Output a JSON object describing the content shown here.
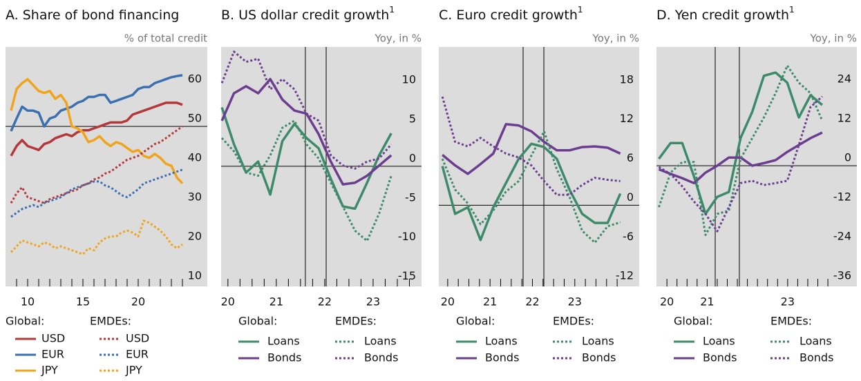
{
  "chart_data": [
    {
      "type": "line",
      "title": "A. Share of bond financing",
      "unit_label": "% of total credit",
      "x": [
        8.5,
        9,
        9.5,
        10,
        10.5,
        11,
        11.5,
        12,
        12.5,
        13,
        13.5,
        14,
        14.5,
        15,
        15.5,
        16,
        16.5,
        17,
        17.5,
        18,
        18.5,
        19,
        19.5,
        20,
        20.5,
        21,
        21.5,
        22,
        22.5,
        23,
        23.5,
        24
      ],
      "xlim": [
        8,
        26.25
      ],
      "xticks": [
        10,
        15,
        20
      ],
      "xminor": [
        9,
        10,
        11,
        12,
        13,
        14,
        15,
        16,
        17,
        18,
        19,
        20,
        21,
        22,
        23,
        24
      ],
      "ylim": [
        9.3,
        70.2
      ],
      "yticks": [
        10,
        20,
        30,
        40,
        50,
        60
      ],
      "hlines": [
        50
      ],
      "legend_groups": [
        "Global:",
        "EMDEs:"
      ],
      "series": [
        {
          "name": "USD",
          "color": "#b5373a",
          "style": "solid",
          "values": [
            42.5,
            45,
            46.5,
            45,
            44.5,
            44,
            45.5,
            46,
            47,
            47.5,
            48,
            47.5,
            48.5,
            49,
            49,
            49.5,
            50,
            50.5,
            51,
            51,
            51,
            51.5,
            53,
            53.5,
            54,
            54.5,
            55,
            55.5,
            56,
            56,
            56,
            55.5
          ]
        },
        {
          "name": "EUR",
          "color": "#3a6fb0",
          "style": "solid",
          "values": [
            48.8,
            52,
            55,
            54,
            54,
            53.5,
            50,
            52,
            52.5,
            54,
            54.5,
            55,
            56,
            56.5,
            57.5,
            57.5,
            58,
            58,
            56,
            56.5,
            57,
            57.5,
            58,
            59.5,
            60,
            60,
            61,
            61.5,
            62,
            62.5,
            62.8,
            63
          ]
        },
        {
          "name": "JPY",
          "color": "#f0a31c",
          "style": "solid",
          "values": [
            54,
            59.5,
            61,
            62,
            60.5,
            59,
            58.5,
            59,
            57,
            58,
            56,
            50,
            49.5,
            48.5,
            46,
            46.5,
            47.5,
            46,
            45,
            46,
            45.5,
            44.5,
            43.5,
            44,
            42.5,
            42,
            43,
            42,
            40.5,
            40,
            37,
            35.5
          ]
        },
        {
          "name": "USD",
          "color": "#b5373a",
          "style": "dotted",
          "values": [
            30.5,
            33,
            34.5,
            32,
            31.5,
            31,
            30.5,
            31.5,
            32,
            32.5,
            33,
            33.5,
            34,
            35,
            35.5,
            36.5,
            37,
            38,
            38.5,
            39.5,
            40.5,
            41.5,
            42,
            42.5,
            43.5,
            44.5,
            45.5,
            46,
            47,
            48,
            49,
            50
          ]
        },
        {
          "name": "EUR",
          "color": "#3a6fb0",
          "style": "dotted",
          "values": [
            27,
            28,
            29,
            29.5,
            30,
            29.5,
            30.5,
            31,
            31.5,
            32,
            33,
            34,
            34.5,
            35,
            35.5,
            36,
            36,
            35,
            34.5,
            33.5,
            32.5,
            32,
            33,
            34,
            35.5,
            36,
            36.5,
            37,
            37.5,
            38,
            38.5,
            39
          ]
        },
        {
          "name": "JPY",
          "color": "#f0a31c",
          "style": "dotted",
          "values": [
            18,
            19.5,
            21,
            20.5,
            20,
            19.5,
            20.5,
            20,
            19,
            19.5,
            19,
            18.5,
            18,
            17.5,
            19,
            18.5,
            20.5,
            21.5,
            22,
            22,
            23,
            23.5,
            23,
            22,
            26,
            25.5,
            24.5,
            23.5,
            22,
            20,
            19,
            20
          ]
        }
      ]
    },
    {
      "type": "line",
      "title": "B. US dollar credit growth",
      "footnote_mark": "1",
      "unit_label": "Yoy, in %",
      "x": [
        19.875,
        20.125,
        20.375,
        20.625,
        20.875,
        21.125,
        21.375,
        21.625,
        21.875,
        22.125,
        22.375,
        22.625,
        22.875,
        23.125,
        23.375
      ],
      "xlim": [
        19.86,
        24
      ],
      "xticks": [
        20,
        21,
        22,
        23
      ],
      "xminor": [
        20,
        20.25,
        20.5,
        20.75,
        21,
        21.25,
        21.5,
        21.75,
        22,
        22.25,
        22.5,
        22.75,
        23,
        23.25,
        23.5,
        23.75
      ],
      "ylim": [
        -15.3,
        15.2
      ],
      "yticks": [
        -15,
        -10,
        -5,
        0,
        5,
        10
      ],
      "hlines": [
        0
      ],
      "vlines": [
        21.6,
        22.03
      ],
      "legend_groups": [
        "Global:",
        "EMDEs:"
      ],
      "series": [
        {
          "name": "Loans",
          "color": "#3d8a6b",
          "style": "solid",
          "values": [
            7.5,
            2.8,
            -0.8,
            0.6,
            -3.6,
            3.2,
            5.4,
            3.6,
            2.3,
            -1.6,
            -5.1,
            -5.4,
            -2.1,
            1.4,
            4.2
          ]
        },
        {
          "name": "Bonds",
          "color": "#6b3d8f",
          "style": "solid",
          "values": [
            5.8,
            9.3,
            10.2,
            9.3,
            11.1,
            8.5,
            7.1,
            6.7,
            4.1,
            0.6,
            -2.3,
            -2.1,
            -1.2,
            0.1,
            1.4
          ]
        },
        {
          "name": "Loans",
          "color": "#3d8a6b",
          "style": "dotted",
          "values": [
            3.6,
            1.9,
            -0.8,
            -1.2,
            1.4,
            4.9,
            5.8,
            2.8,
            1,
            -2.1,
            -5.1,
            -8.2,
            -9.5,
            -6,
            -1.2
          ]
        },
        {
          "name": "Bonds",
          "color": "#6b3d8f",
          "style": "dotted",
          "values": [
            10.6,
            14.6,
            13.3,
            13.7,
            9.8,
            11.1,
            9.8,
            6.7,
            5.8,
            1.4,
            0.1,
            -0.3,
            0.6,
            1,
            2.8
          ]
        }
      ]
    },
    {
      "type": "line",
      "title": "C. Euro credit growth",
      "footnote_mark": "1",
      "unit_label": "Yoy, in %",
      "x": [
        19.875,
        20.175,
        20.475,
        20.775,
        21.075,
        21.375,
        21.675,
        21.975,
        22.275,
        22.575,
        22.875,
        23.175,
        23.475,
        23.775,
        24.075
      ],
      "xlim": [
        19.79,
        24.52
      ],
      "xticks": [
        20,
        21,
        22,
        23
      ],
      "xminor": [
        20,
        20.25,
        20.5,
        20.75,
        21,
        21.25,
        21.5,
        21.75,
        22,
        22.25,
        22.5,
        22.75,
        23,
        23.25,
        23.5,
        23.75,
        24
      ],
      "ylim": [
        -12.4,
        24.2
      ],
      "yticks": [
        -12,
        -6,
        0,
        6,
        12,
        18
      ],
      "hlines": [
        0
      ],
      "vlines": [
        21.78,
        22.27
      ],
      "legend_groups": [
        "Global:",
        "EMDEs:"
      ],
      "series": [
        {
          "name": "Loans",
          "color": "#3d8a6b",
          "style": "solid",
          "values": [
            6,
            -1.3,
            -0.3,
            -5.3,
            -0.3,
            3.4,
            7.1,
            9.4,
            8.9,
            7.1,
            2.4,
            -1.3,
            -2.7,
            -2.7,
            1.8
          ]
        },
        {
          "name": "Bonds",
          "color": "#6b3d8f",
          "style": "solid",
          "values": [
            7.7,
            6.1,
            4.8,
            6.3,
            7.9,
            12.4,
            12.2,
            11.3,
            9.7,
            8.4,
            8.4,
            8.9,
            9,
            8.8,
            7.9
          ]
        },
        {
          "name": "Loans",
          "color": "#3d8a6b",
          "style": "dotted",
          "values": [
            7.1,
            2.4,
            0.3,
            -2.9,
            -0.8,
            2.1,
            3.7,
            7.6,
            11.3,
            5.5,
            1.3,
            -3.9,
            -5.7,
            -3.2,
            -2.6
          ]
        },
        {
          "name": "Bonds",
          "color": "#6b3d8f",
          "style": "dotted",
          "values": [
            16.6,
            9.7,
            9,
            10.3,
            9,
            7.9,
            7.3,
            6.1,
            3.7,
            1.6,
            1.6,
            3.1,
            4.2,
            3.9,
            3.7
          ]
        }
      ]
    },
    {
      "type": "line",
      "title": "D. Yen credit growth",
      "footnote_mark": "1",
      "unit_label": "Yoy, in %",
      "x": [
        19.8,
        20.09,
        20.38,
        20.67,
        20.96,
        21.25,
        21.54,
        21.83,
        22.12,
        22.41,
        22.7,
        22.99,
        23.28,
        23.57,
        23.86
      ],
      "xlim": [
        19.74,
        24.72
      ],
      "xticks": [
        20,
        21,
        23
      ],
      "xminor": [
        20,
        20.25,
        20.5,
        20.75,
        21,
        21.25,
        21.5,
        21.75,
        22,
        22.25,
        22.5,
        22.75,
        23,
        23.25,
        23.5,
        23.75,
        24
      ],
      "ylim": [
        -36.8,
        36.2
      ],
      "yticks": [
        -36,
        -24,
        -12,
        0,
        12,
        24
      ],
      "hlines": [
        0
      ],
      "vlines": [
        21.2,
        21.8
      ],
      "legend_groups": [
        "Global:",
        "EMDEs:"
      ],
      "series": [
        {
          "name": "Loans",
          "color": "#3d8a6b",
          "style": "solid",
          "values": [
            2.1,
            6.9,
            6.9,
            -3.2,
            -14.7,
            -9.5,
            -8,
            8.4,
            16.4,
            27.4,
            28.4,
            25.3,
            14.7,
            21.5,
            18.5
          ]
        },
        {
          "name": "Bonds",
          "color": "#6b3d8f",
          "style": "solid",
          "values": [
            -1.1,
            -2.5,
            -3.8,
            -5.3,
            -2.1,
            0,
            2.5,
            2.5,
            0,
            0.8,
            1.7,
            4.2,
            6.3,
            8.4,
            10.1
          ]
        },
        {
          "name": "Loans",
          "color": "#3d8a6b",
          "style": "dotted",
          "values": [
            -12.6,
            -2.1,
            1.1,
            1.1,
            -21.1,
            -14.7,
            -13.7,
            2.1,
            8.4,
            14.7,
            22.1,
            30.5,
            25.3,
            22.1,
            13.7
          ]
        },
        {
          "name": "Bonds",
          "color": "#6b3d8f",
          "style": "dotted",
          "values": [
            -0.4,
            -2.5,
            -6.3,
            -10.9,
            -14.7,
            -20,
            -12.6,
            -5.3,
            -4.6,
            -5.9,
            -5.3,
            -4.6,
            6.3,
            17.9,
            21.1
          ]
        }
      ]
    }
  ]
}
